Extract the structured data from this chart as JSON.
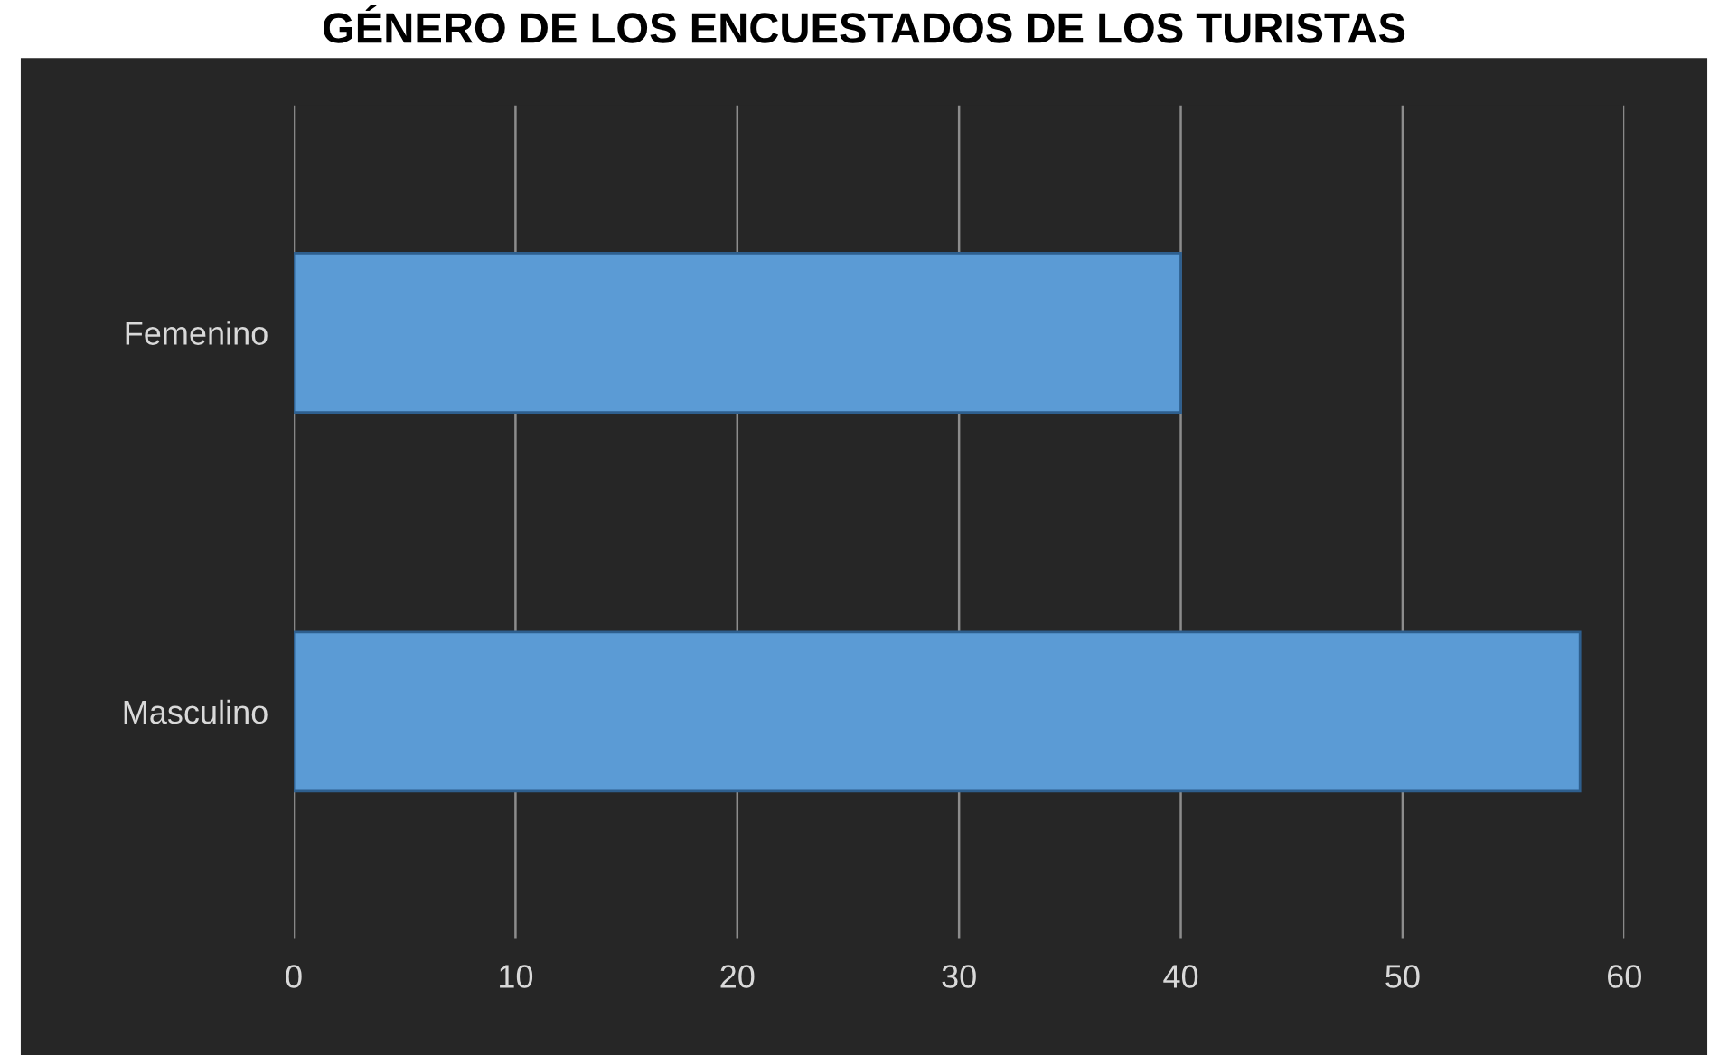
{
  "chart_data": {
    "type": "bar",
    "orientation": "horizontal",
    "title": "GÉNERO DE LOS ENCUESTADOS DE LOS TURISTAS",
    "categories": [
      "Femenino",
      "Masculino"
    ],
    "series": [
      {
        "color": "#5b9bd5",
        "values": [
          40,
          58
        ]
      }
    ],
    "xlim": [
      0,
      60
    ],
    "xticks": [
      0,
      10,
      20,
      30,
      40,
      50,
      60
    ],
    "grid": "x"
  }
}
